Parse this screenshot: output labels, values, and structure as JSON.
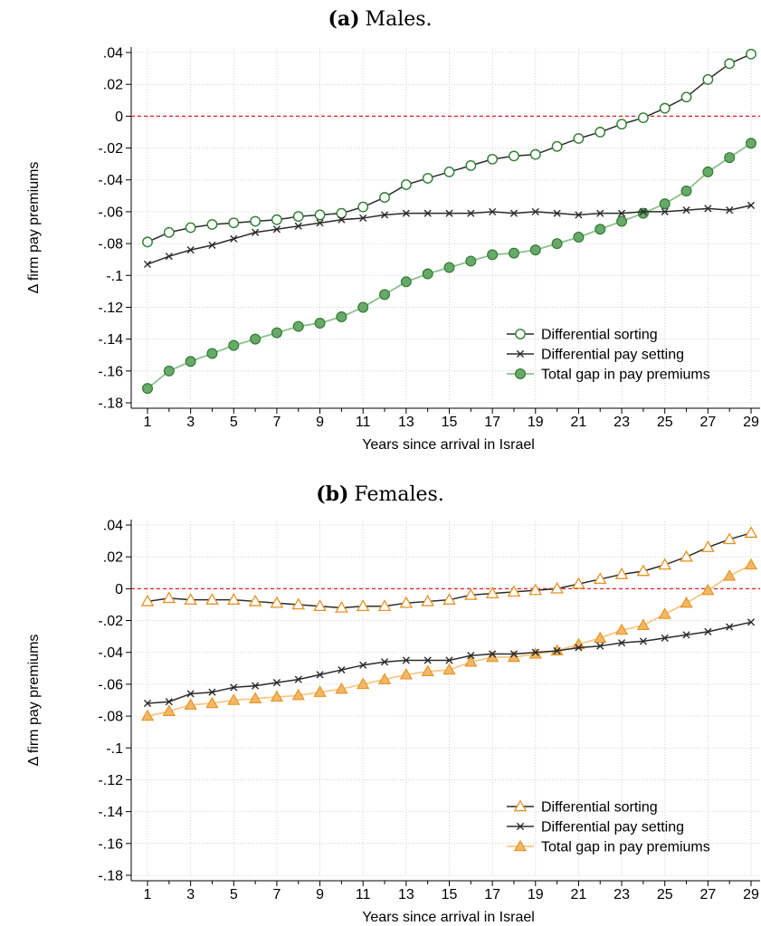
{
  "colors": {
    "line_dark": "#2b2b2b",
    "males_marker": "#2e7d32",
    "males_total_fill": "#6aa86a",
    "males_total_line": "#8cc08c",
    "females_marker": "#e59222",
    "females_total_fill": "#f2b766",
    "females_total_line": "#f5c887",
    "zero_line": "#e02020",
    "grid": "#c8c8c8"
  },
  "chart_data": [
    {
      "type": "line",
      "panel_label": "(a)",
      "title": "Males.",
      "xlabel": "Years since arrival in Israel",
      "ylabel": "Δ firm pay premiums",
      "x_ticks": [
        1,
        3,
        5,
        7,
        9,
        11,
        13,
        15,
        17,
        19,
        21,
        23,
        25,
        27,
        29
      ],
      "y_ticks": [
        0.04,
        0.02,
        0,
        -0.02,
        -0.04,
        -0.06,
        -0.08,
        -0.1,
        -0.12,
        -0.14,
        -0.16,
        -0.18
      ],
      "y_tick_labels": [
        ".04",
        ".02",
        "0",
        "-.02",
        "-.04",
        "-.06",
        "-.08",
        "-.1",
        "-.12",
        "-.14",
        "-.16",
        "-.18"
      ],
      "ylim": [
        -0.18,
        0.04
      ],
      "xlim": [
        1,
        29
      ],
      "reference_line": 0,
      "grid": true,
      "legend_position": "bottom-right",
      "x": [
        1,
        2,
        3,
        4,
        5,
        6,
        7,
        8,
        9,
        10,
        11,
        12,
        13,
        14,
        15,
        16,
        17,
        18,
        19,
        20,
        21,
        22,
        23,
        24,
        25,
        26,
        27,
        28,
        29
      ],
      "series": [
        {
          "name": "Differential sorting",
          "marker": "circle-open",
          "values": [
            -0.079,
            -0.073,
            -0.07,
            -0.068,
            -0.067,
            -0.066,
            -0.065,
            -0.063,
            -0.062,
            -0.061,
            -0.057,
            -0.051,
            -0.043,
            -0.039,
            -0.035,
            -0.031,
            -0.027,
            -0.025,
            -0.024,
            -0.019,
            -0.014,
            -0.01,
            -0.005,
            -0.001,
            0.005,
            0.012,
            0.023,
            0.033,
            0.039
          ]
        },
        {
          "name": "Differential pay setting",
          "marker": "x",
          "values": [
            -0.093,
            -0.088,
            -0.084,
            -0.081,
            -0.077,
            -0.073,
            -0.071,
            -0.069,
            -0.067,
            -0.065,
            -0.064,
            -0.062,
            -0.061,
            -0.061,
            -0.061,
            -0.061,
            -0.06,
            -0.061,
            -0.06,
            -0.061,
            -0.062,
            -0.061,
            -0.061,
            -0.06,
            -0.06,
            -0.059,
            -0.058,
            -0.059,
            -0.056
          ]
        },
        {
          "name": "Total gap in pay premiums",
          "marker": "circle-filled",
          "values": [
            -0.171,
            -0.16,
            -0.154,
            -0.149,
            -0.144,
            -0.14,
            -0.136,
            -0.132,
            -0.13,
            -0.126,
            -0.12,
            -0.112,
            -0.104,
            -0.099,
            -0.095,
            -0.091,
            -0.087,
            -0.086,
            -0.084,
            -0.08,
            -0.076,
            -0.071,
            -0.066,
            -0.061,
            -0.055,
            -0.047,
            -0.035,
            -0.026,
            -0.017
          ]
        }
      ]
    },
    {
      "type": "line",
      "panel_label": "(b)",
      "title": "Females.",
      "xlabel": "Years since arrival in Israel",
      "ylabel": "Δ firm pay premiums",
      "x_ticks": [
        1,
        3,
        5,
        7,
        9,
        11,
        13,
        15,
        17,
        19,
        21,
        23,
        25,
        27,
        29
      ],
      "y_ticks": [
        0.04,
        0.02,
        0,
        -0.02,
        -0.04,
        -0.06,
        -0.08,
        -0.1,
        -0.12,
        -0.14,
        -0.16,
        -0.18
      ],
      "y_tick_labels": [
        ".04",
        ".02",
        "0",
        "-.02",
        "-.04",
        "-.06",
        "-.08",
        "-.1",
        "-.12",
        "-.14",
        "-.16",
        "-.18"
      ],
      "ylim": [
        -0.18,
        0.04
      ],
      "xlim": [
        1,
        29
      ],
      "reference_line": 0,
      "grid": true,
      "legend_position": "bottom-right",
      "x": [
        1,
        2,
        3,
        4,
        5,
        6,
        7,
        8,
        9,
        10,
        11,
        12,
        13,
        14,
        15,
        16,
        17,
        18,
        19,
        20,
        21,
        22,
        23,
        24,
        25,
        26,
        27,
        28,
        29
      ],
      "series": [
        {
          "name": "Differential sorting",
          "marker": "triangle-open",
          "values": [
            -0.008,
            -0.006,
            -0.007,
            -0.007,
            -0.007,
            -0.008,
            -0.009,
            -0.01,
            -0.011,
            -0.012,
            -0.011,
            -0.011,
            -0.009,
            -0.008,
            -0.007,
            -0.004,
            -0.003,
            -0.002,
            -0.001,
            0.0,
            0.003,
            0.006,
            0.009,
            0.011,
            0.015,
            0.02,
            0.026,
            0.031,
            0.035
          ]
        },
        {
          "name": "Differential pay setting",
          "marker": "x",
          "values": [
            -0.072,
            -0.071,
            -0.066,
            -0.065,
            -0.062,
            -0.061,
            -0.059,
            -0.057,
            -0.054,
            -0.051,
            -0.048,
            -0.046,
            -0.045,
            -0.045,
            -0.045,
            -0.042,
            -0.041,
            -0.041,
            -0.04,
            -0.039,
            -0.037,
            -0.036,
            -0.034,
            -0.033,
            -0.031,
            -0.029,
            -0.027,
            -0.024,
            -0.021
          ]
        },
        {
          "name": "Total gap in pay premiums",
          "marker": "triangle-filled",
          "values": [
            -0.08,
            -0.077,
            -0.073,
            -0.072,
            -0.07,
            -0.069,
            -0.068,
            -0.067,
            -0.065,
            -0.063,
            -0.06,
            -0.057,
            -0.054,
            -0.052,
            -0.051,
            -0.046,
            -0.043,
            -0.043,
            -0.041,
            -0.039,
            -0.035,
            -0.031,
            -0.026,
            -0.023,
            -0.016,
            -0.009,
            -0.001,
            0.008,
            0.015
          ]
        }
      ]
    }
  ]
}
